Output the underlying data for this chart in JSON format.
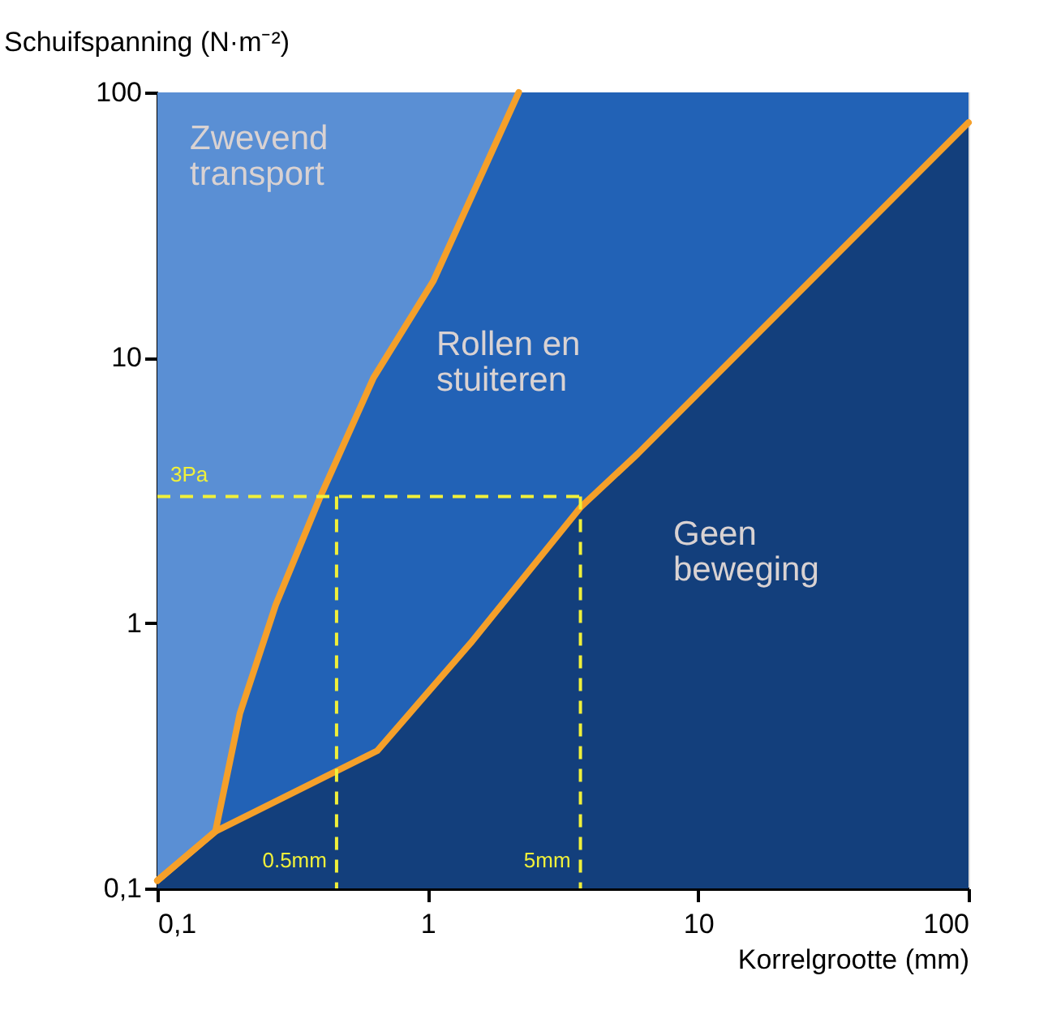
{
  "chart_data": {
    "type": "line",
    "xlabel": "Korrelgrootte (mm)",
    "ylabel": "Schuifspanning (N·m⁻²)",
    "log": "xy",
    "xlim": [
      0.1,
      100
    ],
    "ylim": [
      0.1,
      100
    ],
    "xticks": [
      {
        "value": 0.1,
        "label": "0,1"
      },
      1,
      10,
      100
    ],
    "yticks": [
      {
        "value": 0.1,
        "label": "0,1"
      },
      1,
      10,
      100
    ],
    "bands": [
      {
        "axis": "x",
        "from": 0.1,
        "to": 2.17,
        "color": "#5a8fd4"
      }
    ],
    "series": [
      {
        "type": "area",
        "color": "#2262b6",
        "x": [
          0.164,
          0.202,
          0.274,
          0.398,
          0.63,
          1.05,
          2.17,
          100
        ],
        "values": [
          0.164,
          0.457,
          1.17,
          2.95,
          8.4,
          19.5,
          100,
          100
        ]
      },
      {
        "type": "area",
        "color": "#133f7c",
        "x": [
          0.1,
          0.164,
          0.65,
          1.44,
          3.67,
          5.97,
          100
        ],
        "values": [
          0.107,
          0.164,
          0.33,
          0.84,
          2.73,
          4.34,
          77
        ]
      },
      {
        "color": "#f5a02a",
        "x": [
          0.1,
          0.164,
          0.202,
          0.274,
          0.398,
          0.63,
          1.05,
          2.17
        ],
        "values": [
          0.107,
          0.164,
          0.457,
          1.17,
          2.95,
          8.4,
          19.5,
          100
        ]
      },
      {
        "color": "#f5a02a",
        "x": [
          0.1,
          0.164,
          0.65,
          1.44,
          3.67,
          5.97,
          100
        ],
        "values": [
          0.107,
          0.164,
          0.33,
          0.84,
          2.73,
          4.34,
          77
        ]
      },
      {
        "line_style": "dashed",
        "color": "#f0f03a",
        "x": [
          0.1,
          3.67
        ],
        "values": [
          3,
          3
        ]
      },
      {
        "line_style": "dashed",
        "color": "#f0f03a",
        "x": [
          0.46,
          0.46
        ],
        "values": [
          3,
          0.1
        ]
      },
      {
        "line_style": "dashed",
        "color": "#f0f03a",
        "x": [
          3.67,
          3.67
        ],
        "values": [
          3,
          0.1
        ]
      }
    ],
    "annotations": [
      "Zwevend\ntransport",
      "Rollen en\nstuiteren",
      "Geen\nbeweging",
      {
        "text": "3Pa",
        "x": 0.1,
        "y": 3
      },
      {
        "text": "0.5mm",
        "x": 0.46,
        "y": 0.1
      },
      {
        "text": "5mm",
        "x": 3.67,
        "y": 0.1
      }
    ]
  }
}
